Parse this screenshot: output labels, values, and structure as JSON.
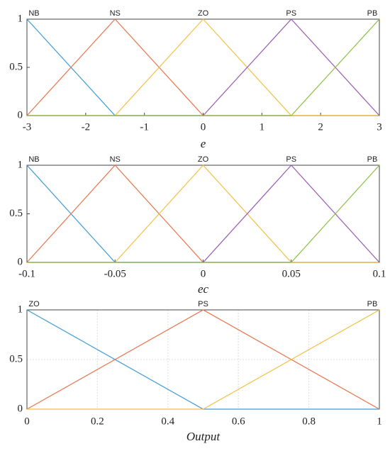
{
  "chart_data": [
    {
      "type": "line",
      "xlabel": "e",
      "x": [
        -3,
        -1.5,
        0,
        1.5,
        3
      ],
      "series": [
        {
          "name": "NB",
          "color": "#3d9ad8",
          "values": [
            1,
            0,
            0,
            0,
            0
          ]
        },
        {
          "name": "NS",
          "color": "#e8734a",
          "values": [
            0,
            1,
            0,
            0,
            0
          ]
        },
        {
          "name": "ZO",
          "color": "#f2c045",
          "values": [
            0,
            0,
            1,
            0,
            0
          ]
        },
        {
          "name": "PS",
          "color": "#9a58b5",
          "values": [
            0,
            0,
            0,
            1,
            0
          ]
        },
        {
          "name": "PB",
          "color": "#8cbf45",
          "values": [
            0,
            0,
            0,
            0,
            1
          ]
        }
      ],
      "xlim": [
        -3,
        3
      ],
      "xticks": [
        -3,
        -2,
        -1,
        0,
        1,
        2,
        3
      ],
      "ylim": [
        0,
        1
      ],
      "yticks": [
        0,
        0.5,
        1
      ],
      "grid": false
    },
    {
      "type": "line",
      "xlabel": "ec",
      "x": [
        -0.1,
        -0.05,
        0,
        0.05,
        0.1
      ],
      "series": [
        {
          "name": "NB",
          "color": "#3d9ad8",
          "values": [
            1,
            0,
            0,
            0,
            0
          ]
        },
        {
          "name": "NS",
          "color": "#e8734a",
          "values": [
            0,
            1,
            0,
            0,
            0
          ]
        },
        {
          "name": "ZO",
          "color": "#f2c045",
          "values": [
            0,
            0,
            1,
            0,
            0
          ]
        },
        {
          "name": "PS",
          "color": "#9a58b5",
          "values": [
            0,
            0,
            0,
            1,
            0
          ]
        },
        {
          "name": "PB",
          "color": "#8cbf45",
          "values": [
            0,
            0,
            0,
            0,
            1
          ]
        }
      ],
      "xlim": [
        -0.1,
        0.1
      ],
      "xticks": [
        -0.1,
        -0.05,
        0,
        0.05,
        0.1
      ],
      "ylim": [
        0,
        1
      ],
      "yticks": [
        0,
        0.5,
        1
      ],
      "grid": false
    },
    {
      "type": "line",
      "xlabel": "Output",
      "x": [
        0,
        0.5,
        1
      ],
      "series": [
        {
          "name": "ZO",
          "color": "#3d9ad8",
          "values": [
            1,
            0,
            0
          ]
        },
        {
          "name": "PS",
          "color": "#e8734a",
          "values": [
            0,
            1,
            0
          ]
        },
        {
          "name": "PB",
          "color": "#f2c045",
          "values": [
            0,
            0,
            1
          ]
        }
      ],
      "xlim": [
        0,
        1
      ],
      "xticks": [
        0,
        0.2,
        0.4,
        0.6,
        0.8,
        1
      ],
      "ylim": [
        0,
        1
      ],
      "yticks": [
        0,
        0.5,
        1
      ],
      "grid": true
    }
  ]
}
